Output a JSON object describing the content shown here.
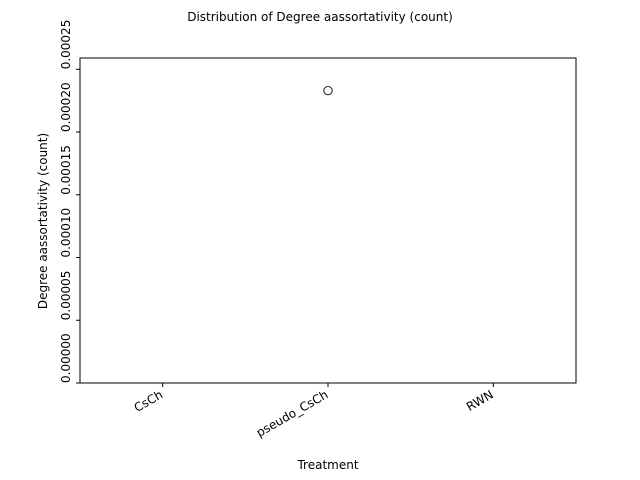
{
  "chart_data": {
    "type": "box",
    "title": "Distribution of Degree aassortativity (count)",
    "xlabel": "Treatment",
    "ylabel": "Degree aassortativity (count)",
    "categories": [
      "CsCh",
      "pseudo_CsCh",
      "RWN"
    ],
    "ylim": [
      0,
      0.000259
    ],
    "yticks": [
      0,
      5e-05,
      0.0001,
      0.00015,
      0.0002,
      0.00025
    ],
    "ytick_labels": [
      "0.00000",
      "0.00005",
      "0.00010",
      "0.00015",
      "0.00020",
      "0.00025"
    ],
    "outliers": [
      {
        "category": "pseudo_CsCh",
        "value": 0.000233
      }
    ],
    "grid": false,
    "marker_color": "#3d3d3d"
  }
}
